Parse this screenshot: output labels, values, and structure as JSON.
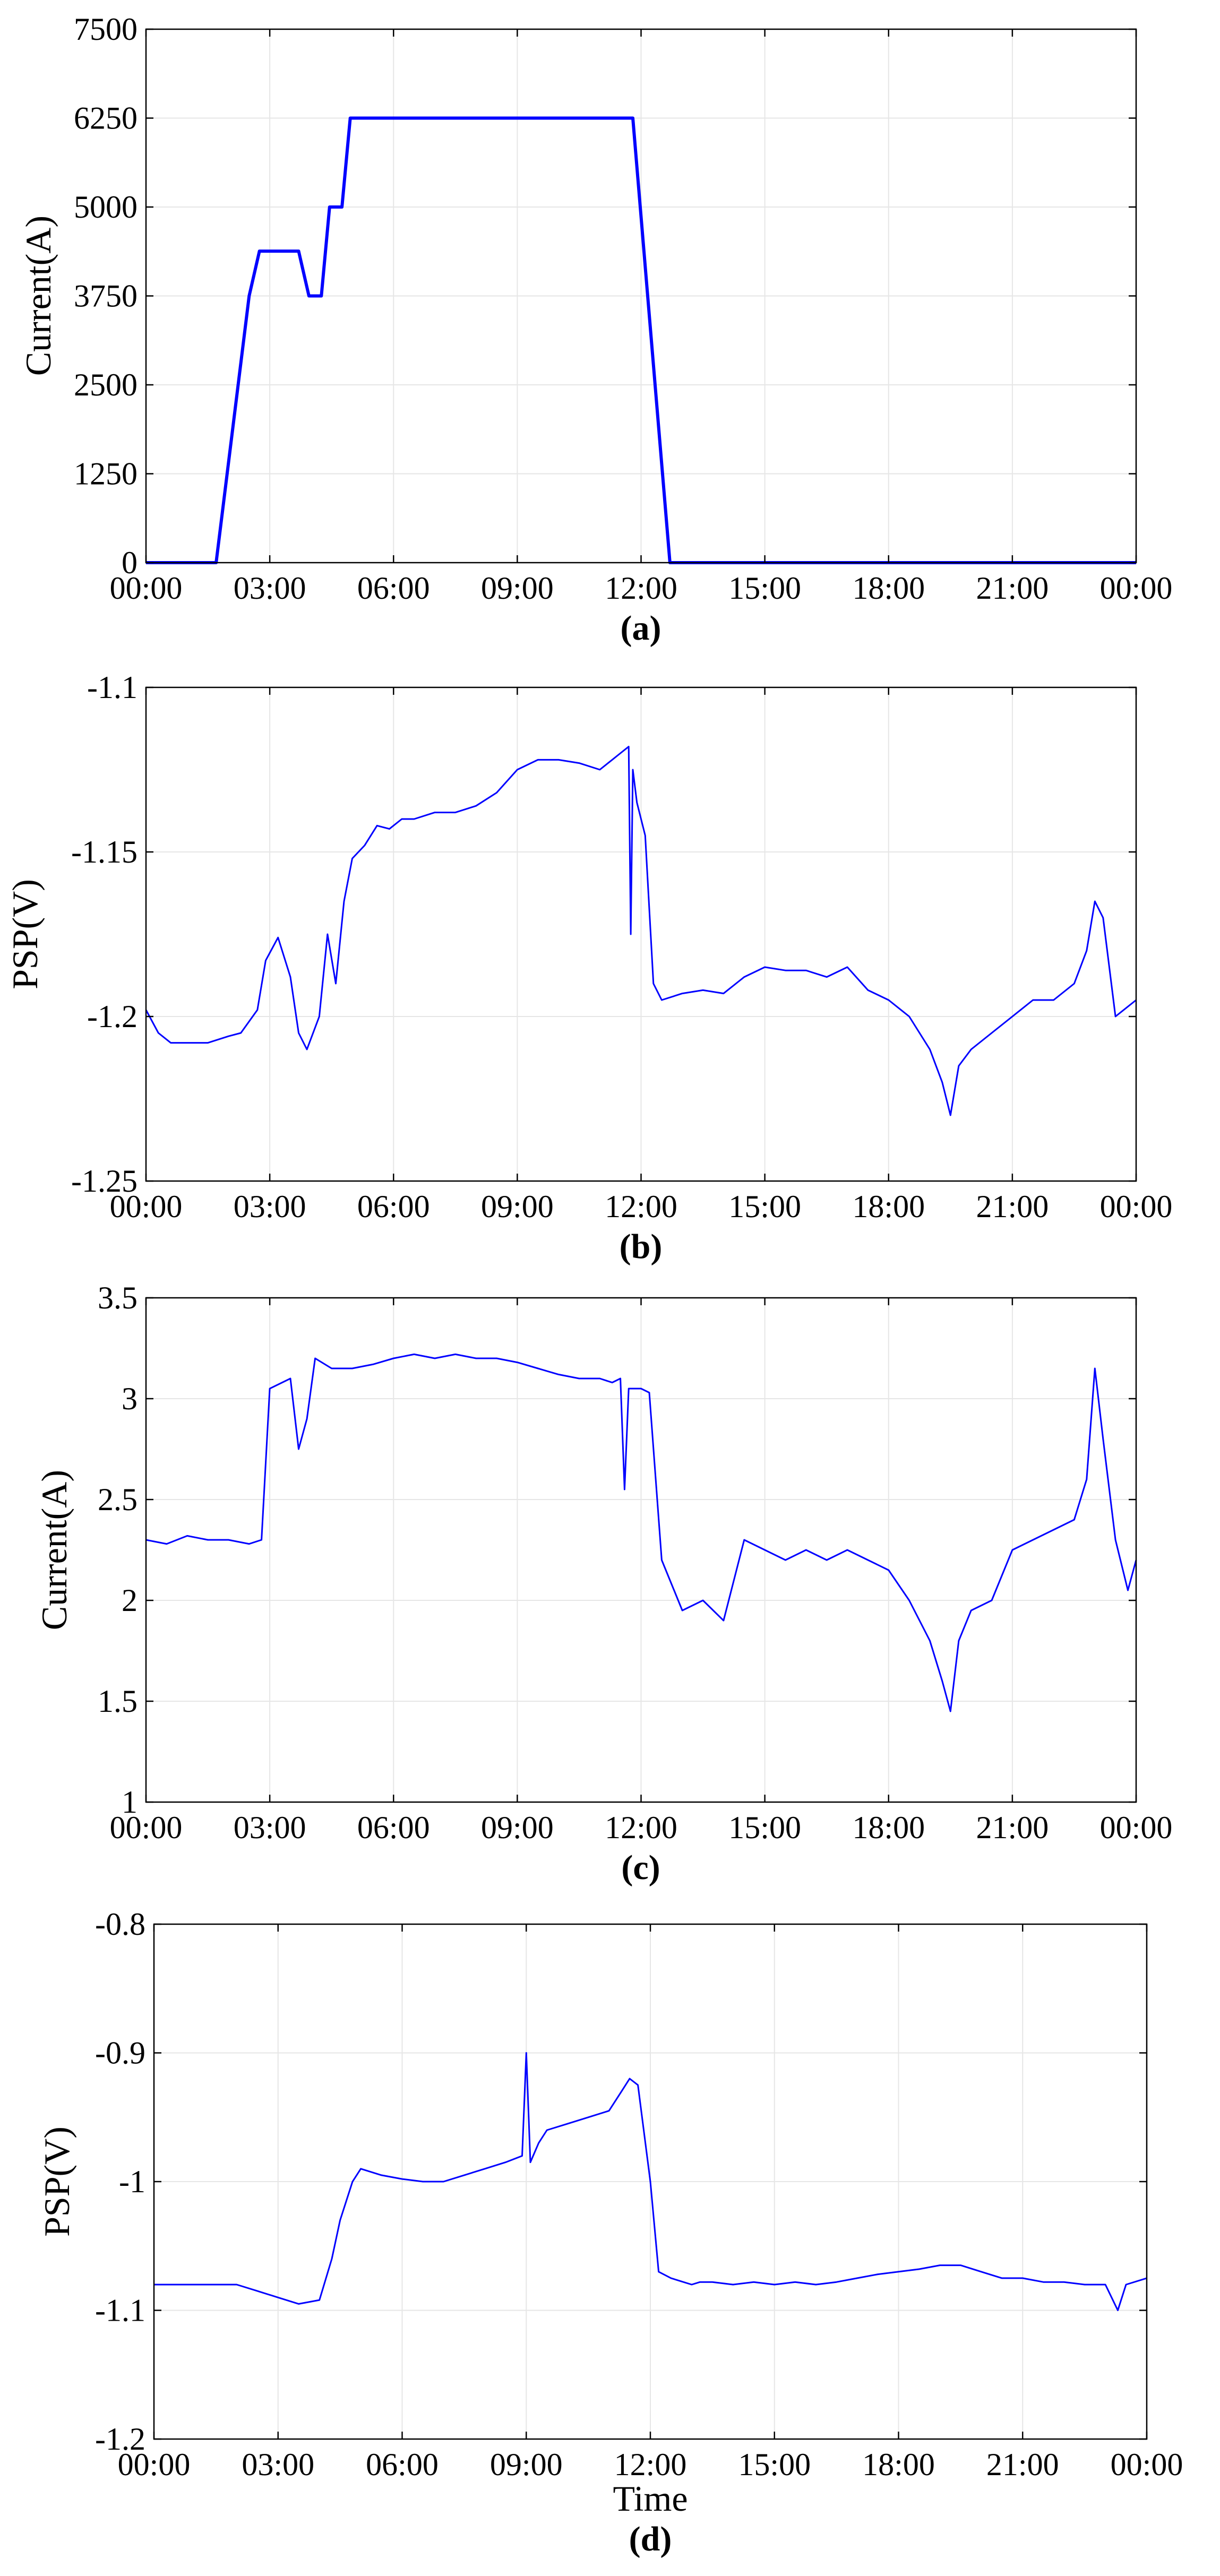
{
  "colors": {
    "series": "#0000ff",
    "grid": "#e6e6e6",
    "axis": "#000000"
  },
  "chart_data": [
    {
      "type": "line",
      "panel_label": "(a)",
      "ylabel": "Current(A)",
      "xlabel": "",
      "xlim_hours": [
        0,
        24
      ],
      "ylim": [
        0,
        7500
      ],
      "xticks": [
        "00:00",
        "03:00",
        "06:00",
        "09:00",
        "12:00",
        "15:00",
        "18:00",
        "21:00",
        "00:00"
      ],
      "yticks": [
        0,
        1250,
        2500,
        3750,
        5000,
        6250,
        7500
      ],
      "grid": true,
      "x_hours": [
        0,
        1.7,
        2.5,
        2.75,
        3.7,
        3.95,
        4.25,
        4.45,
        4.75,
        4.95,
        11.8,
        12.7,
        24
      ],
      "values": [
        0,
        0,
        3750,
        4380,
        4380,
        3750,
        3750,
        5000,
        5000,
        6250,
        6250,
        0,
        0
      ]
    },
    {
      "type": "line",
      "panel_label": "(b)",
      "ylabel": "PSP(V)",
      "xlabel": "",
      "xlim_hours": [
        0,
        24
      ],
      "ylim": [
        -1.25,
        -1.1
      ],
      "xticks": [
        "00:00",
        "03:00",
        "06:00",
        "09:00",
        "12:00",
        "15:00",
        "18:00",
        "21:00",
        "00:00"
      ],
      "yticks": [
        "-1.25",
        "-1.2",
        "-1.15",
        "-1.1"
      ],
      "grid": true,
      "x_hours": [
        0,
        0.3,
        0.6,
        1.0,
        1.5,
        2.0,
        2.3,
        2.7,
        2.9,
        3.2,
        3.5,
        3.7,
        3.9,
        4.2,
        4.4,
        4.6,
        4.8,
        5.0,
        5.3,
        5.6,
        5.9,
        6.2,
        6.5,
        7.0,
        7.5,
        8.0,
        8.5,
        9.0,
        9.5,
        10.0,
        10.5,
        11.0,
        11.3,
        11.5,
        11.7,
        11.75,
        11.8,
        11.9,
        12.1,
        12.3,
        12.5,
        13.0,
        13.5,
        14.0,
        14.5,
        15.0,
        15.5,
        16.0,
        16.5,
        17.0,
        17.5,
        18.0,
        18.5,
        19.0,
        19.3,
        19.5,
        19.7,
        20.0,
        20.5,
        21.0,
        21.5,
        22.0,
        22.5,
        22.8,
        23.0,
        23.2,
        23.5,
        24
      ],
      "values": [
        -1.198,
        -1.205,
        -1.208,
        -1.208,
        -1.208,
        -1.206,
        -1.205,
        -1.198,
        -1.183,
        -1.176,
        -1.188,
        -1.205,
        -1.21,
        -1.2,
        -1.175,
        -1.19,
        -1.165,
        -1.152,
        -1.148,
        -1.142,
        -1.143,
        -1.14,
        -1.14,
        -1.138,
        -1.138,
        -1.136,
        -1.132,
        -1.125,
        -1.122,
        -1.122,
        -1.123,
        -1.125,
        -1.122,
        -1.12,
        -1.118,
        -1.175,
        -1.125,
        -1.135,
        -1.145,
        -1.19,
        -1.195,
        -1.193,
        -1.192,
        -1.193,
        -1.188,
        -1.185,
        -1.186,
        -1.186,
        -1.188,
        -1.185,
        -1.192,
        -1.195,
        -1.2,
        -1.21,
        -1.22,
        -1.23,
        -1.215,
        -1.21,
        -1.205,
        -1.2,
        -1.195,
        -1.195,
        -1.19,
        -1.18,
        -1.165,
        -1.17,
        -1.2,
        -1.195
      ]
    },
    {
      "type": "line",
      "panel_label": "(c)",
      "ylabel": "Current(A)",
      "xlabel": "",
      "xlim_hours": [
        0,
        24
      ],
      "ylim": [
        1,
        3.5
      ],
      "xticks": [
        "00:00",
        "03:00",
        "06:00",
        "09:00",
        "12:00",
        "15:00",
        "18:00",
        "21:00",
        "00:00"
      ],
      "yticks": [
        "1",
        "1.5",
        "2",
        "2.5",
        "3",
        "3.5"
      ],
      "grid": true,
      "x_hours": [
        0,
        0.5,
        1.0,
        1.5,
        2.0,
        2.5,
        2.8,
        3.0,
        3.3,
        3.5,
        3.7,
        3.9,
        4.1,
        4.5,
        5.0,
        5.5,
        6.0,
        6.5,
        7.0,
        7.5,
        8.0,
        8.5,
        9.0,
        9.5,
        10.0,
        10.5,
        11.0,
        11.3,
        11.5,
        11.6,
        11.7,
        12.0,
        12.2,
        12.5,
        12.8,
        13.0,
        13.5,
        14.0,
        14.5,
        15.0,
        15.5,
        16.0,
        16.5,
        17.0,
        17.5,
        18.0,
        18.5,
        19.0,
        19.3,
        19.5,
        19.7,
        20.0,
        20.5,
        21.0,
        21.5,
        22.0,
        22.5,
        22.8,
        23.0,
        23.2,
        23.5,
        23.8,
        24
      ],
      "values": [
        2.3,
        2.28,
        2.32,
        2.3,
        2.3,
        2.28,
        2.3,
        3.05,
        3.08,
        3.1,
        2.75,
        2.9,
        3.2,
        3.15,
        3.15,
        3.17,
        3.2,
        3.22,
        3.2,
        3.22,
        3.2,
        3.2,
        3.18,
        3.15,
        3.12,
        3.1,
        3.1,
        3.08,
        3.1,
        2.55,
        3.05,
        3.05,
        3.03,
        2.2,
        2.05,
        1.95,
        2.0,
        1.9,
        2.3,
        2.25,
        2.2,
        2.25,
        2.2,
        2.25,
        2.2,
        2.15,
        2.0,
        1.8,
        1.6,
        1.45,
        1.8,
        1.95,
        2.0,
        2.25,
        2.3,
        2.35,
        2.4,
        2.6,
        3.15,
        2.8,
        2.3,
        2.05,
        2.2
      ]
    },
    {
      "type": "line",
      "panel_label": "(d)",
      "ylabel": "PSP(V)",
      "xlabel": "Time",
      "xlim_hours": [
        0,
        24
      ],
      "ylim": [
        -1.2,
        -0.8
      ],
      "xticks": [
        "00:00",
        "03:00",
        "06:00",
        "09:00",
        "12:00",
        "15:00",
        "18:00",
        "21:00",
        "00:00"
      ],
      "yticks": [
        "-1.2",
        "-1.1",
        "-1",
        "-0.9",
        "-0.8"
      ],
      "grid": true,
      "x_hours": [
        0,
        0.5,
        1.0,
        1.5,
        2.0,
        2.5,
        3.0,
        3.5,
        4.0,
        4.3,
        4.5,
        4.8,
        5.0,
        5.5,
        6.0,
        6.5,
        7.0,
        7.5,
        8.0,
        8.5,
        8.9,
        9.0,
        9.1,
        9.3,
        9.5,
        10.0,
        10.5,
        11.0,
        11.3,
        11.5,
        11.7,
        11.8,
        12.0,
        12.2,
        12.5,
        12.8,
        13.0,
        13.2,
        13.5,
        14.0,
        14.5,
        15.0,
        15.5,
        16.0,
        16.5,
        17.0,
        17.5,
        18.0,
        18.5,
        19.0,
        19.5,
        20.0,
        20.5,
        21.0,
        21.5,
        22.0,
        22.5,
        23.0,
        23.3,
        23.5,
        24
      ],
      "values": [
        -1.08,
        -1.08,
        -1.08,
        -1.08,
        -1.08,
        -1.085,
        -1.09,
        -1.095,
        -1.092,
        -1.06,
        -1.03,
        -1.0,
        -0.99,
        -0.995,
        -0.998,
        -1.0,
        -1.0,
        -0.995,
        -0.99,
        -0.985,
        -0.98,
        -0.9,
        -0.985,
        -0.97,
        -0.96,
        -0.955,
        -0.95,
        -0.945,
        -0.93,
        -0.92,
        -0.925,
        -0.95,
        -1.0,
        -1.07,
        -1.075,
        -1.078,
        -1.08,
        -1.078,
        -1.078,
        -1.08,
        -1.078,
        -1.08,
        -1.078,
        -1.08,
        -1.078,
        -1.075,
        -1.072,
        -1.07,
        -1.068,
        -1.065,
        -1.065,
        -1.07,
        -1.075,
        -1.075,
        -1.078,
        -1.078,
        -1.08,
        -1.08,
        -1.1,
        -1.08,
        -1.075
      ]
    }
  ]
}
